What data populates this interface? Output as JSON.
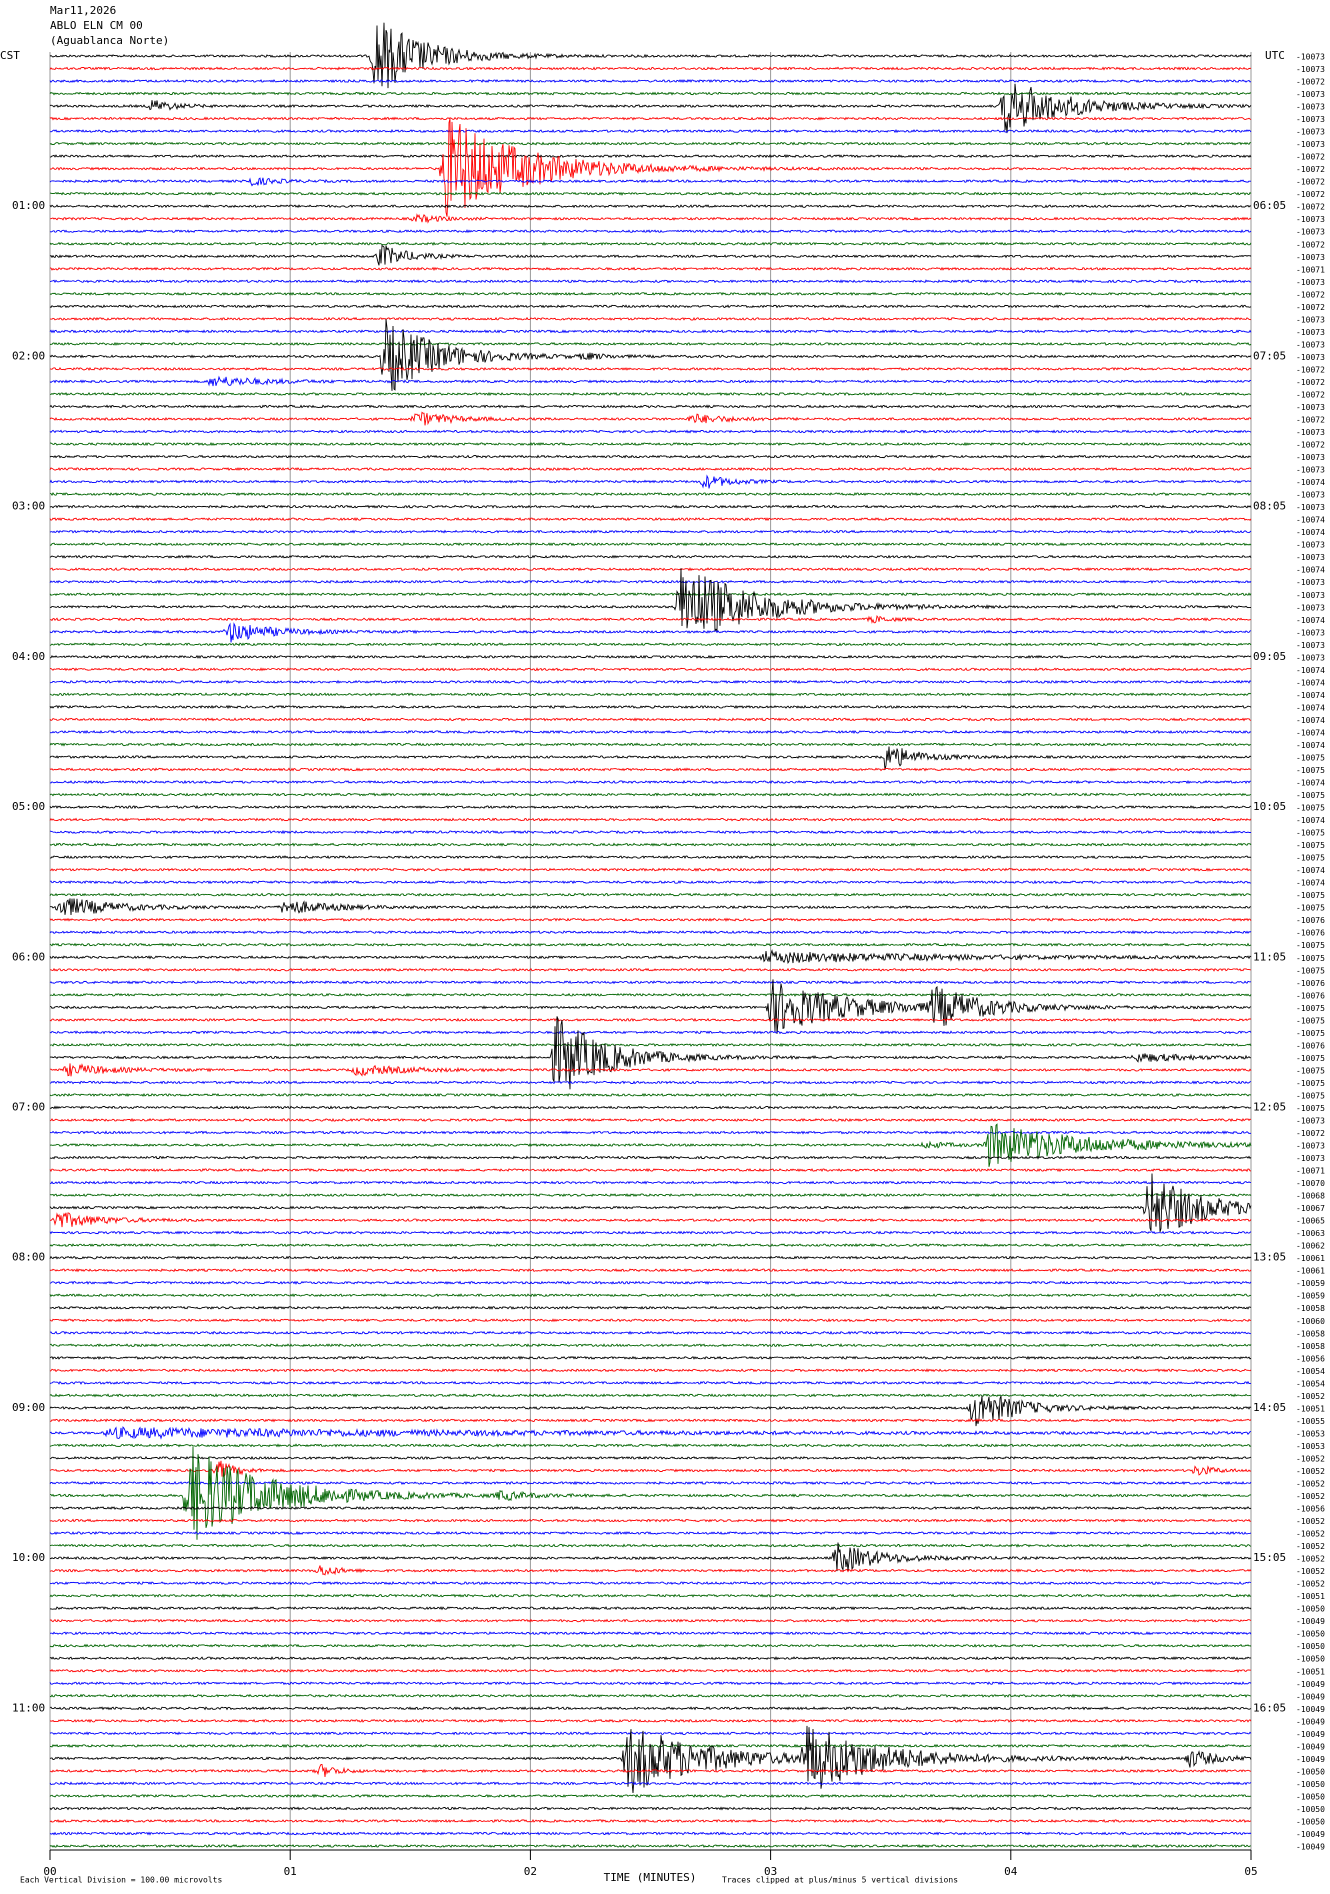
{
  "chart_data": {
    "type": "helicorder",
    "title_lines": [
      "Mar11,2026",
      "ABLO ELN CM 00",
      "(Aguablanca Norte)"
    ],
    "left_label": "CST",
    "right_label": "UTC",
    "left_hours": [
      "01:00",
      "02:00",
      "03:00",
      "04:00",
      "05:00",
      "06:00",
      "07:00",
      "08:00",
      "09:00",
      "10:00",
      "11:00"
    ],
    "right_hours": [
      "06:05",
      "07:05",
      "08:05",
      "09:05",
      "10:05",
      "11:05",
      "12:05",
      "13:05",
      "14:05",
      "15:05",
      "16:05"
    ],
    "colors": [
      "#000000",
      "#ff0000",
      "#0000ff",
      "#006400"
    ],
    "row_offsets": [
      "-10073",
      "-10073",
      "-10072",
      "-10073",
      "-10073",
      "-10073",
      "-10073",
      "-10073",
      "-10072",
      "-10072",
      "-10072",
      "-10072",
      "-10072",
      "-10073",
      "-10073",
      "-10072",
      "-10073",
      "-10071",
      "-10073",
      "-10072",
      "-10072",
      "-10073",
      "-10073",
      "-10073",
      "-10073",
      "-10072",
      "-10072",
      "-10072",
      "-10073",
      "-10072",
      "-10073",
      "-10072",
      "-10073",
      "-10073",
      "-10074",
      "-10073",
      "-10073",
      "-10074",
      "-10074",
      "-10073",
      "-10073",
      "-10074",
      "-10073",
      "-10073",
      "-10073",
      "-10074",
      "-10073",
      "-10073",
      "-10073",
      "-10074",
      "-10074",
      "-10074",
      "-10074",
      "-10074",
      "-10074",
      "-10074",
      "-10075",
      "-10075",
      "-10074",
      "-10075",
      "-10075",
      "-10074",
      "-10075",
      "-10075",
      "-10075",
      "-10074",
      "-10074",
      "-10075",
      "-10075",
      "-10076",
      "-10076",
      "-10075",
      "-10075",
      "-10075",
      "-10076",
      "-10076",
      "-10075",
      "-10075",
      "-10075",
      "-10076",
      "-10075",
      "-10075",
      "-10075",
      "-10075",
      "-10075",
      "-10073",
      "-10072",
      "-10073",
      "-10073",
      "-10071",
      "-10070",
      "-10068",
      "-10067",
      "-10065",
      "-10063",
      "-10062",
      "-10061",
      "-10061",
      "-10059",
      "-10059",
      "-10058",
      "-10060",
      "-10058",
      "-10058",
      "-10056",
      "-10054",
      "-10054",
      "-10052",
      "-10051",
      "-10055",
      "-10053",
      "-10053",
      "-10052",
      "-10052",
      "-10052",
      "-10052",
      "-10056",
      "-10052",
      "-10052",
      "-10052",
      "-10052",
      "-10052",
      "-10052",
      "-10051",
      "-10050",
      "-10049",
      "-10050",
      "-10050",
      "-10050",
      "-10051",
      "-10049",
      "-10049",
      "-10049",
      "-10049",
      "-10049",
      "-10049",
      "-10049",
      "-10050",
      "-10050",
      "-10050",
      "-10050",
      "-10050",
      "-10049",
      "-10049"
    ],
    "xlim": [
      0,
      5
    ],
    "xticks": [
      {
        "value": 0,
        "label": "00"
      },
      {
        "value": 1,
        "label": "01"
      },
      {
        "value": 2,
        "label": "02"
      },
      {
        "value": 3,
        "label": "03"
      },
      {
        "value": 4,
        "label": "04"
      },
      {
        "value": 5,
        "label": "05"
      }
    ],
    "xlabel": "TIME (MINUTES)",
    "scale_note": "Each Vertical Division =  100.00 microvolts",
    "clip_note": "Traces clipped at plus/minus 5 vertical divisions",
    "grid": true
  }
}
